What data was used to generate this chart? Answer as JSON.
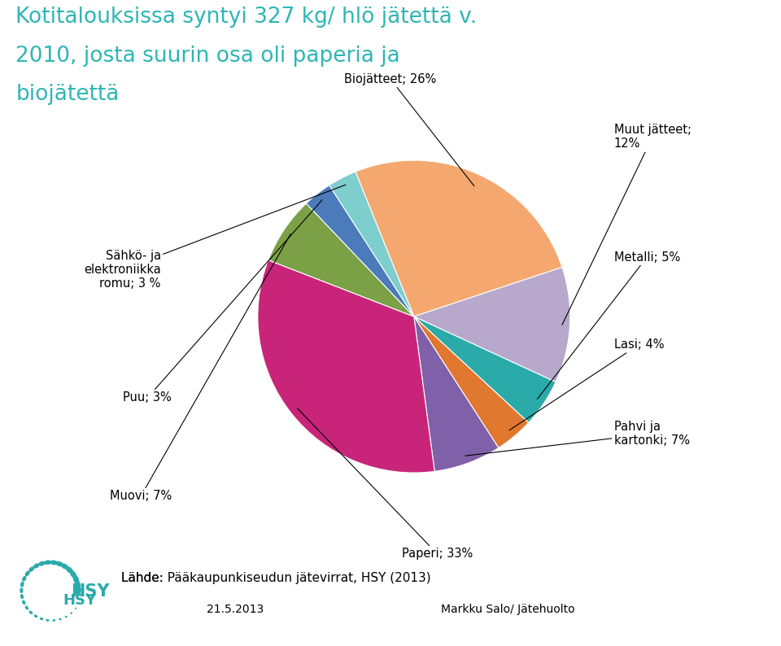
{
  "title_line1": "Kotitalouksissa syntyi 327 kg/ hlö jätettä v.",
  "title_line2": "2010, josta suurin osa oli paperia ja",
  "title_line3": "biojätettä",
  "title_color": "#2EB5B5",
  "labels": [
    "Biojätteet; 26%",
    "Muut jätteet;\n12%",
    "Metalli; 5%",
    "Lasi; 4%",
    "Pahvi ja\nkartonki; 7%",
    "Paperi; 33%",
    "Muovi; 7%",
    "Puu; 3%",
    "Sähkö- ja\nelektroniikka\nromu; 3 %"
  ],
  "sizes": [
    26,
    12,
    5,
    4,
    7,
    33,
    7,
    3,
    3
  ],
  "colors": [
    "#F4A870",
    "#B8A8CC",
    "#2BAAAA",
    "#E07830",
    "#8060A8",
    "#C8257A",
    "#7BA046",
    "#4B7BBB",
    "#7ECECE"
  ],
  "startangle": 112,
  "source_text": "Lähde: Pääkaupunkiseudun jätevirrat, HSY (2013)",
  "date_text": "21.5.2013",
  "author_text": "Markku Salo/ Jätehuolto",
  "background_color": "#FFFFFF"
}
